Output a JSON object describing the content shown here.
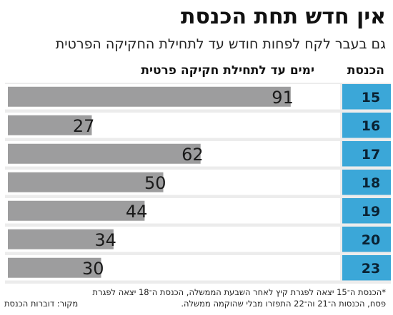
{
  "title": "אין חדש תחת הכנסת",
  "subtitle": "גם בעבר לקח לפחות חודש עד לתחילת החקיקה הפרטית",
  "colors": {
    "bar": "#9d9d9e",
    "label_cell": "#3ba7d8",
    "panel": "#ececec",
    "row_bg": "#ffffff"
  },
  "chart_data": {
    "type": "bar",
    "orientation": "horizontal",
    "column_headers": {
      "category": "הכנסת",
      "value": "ימים עד לתחילת חקיקה פרטית"
    },
    "categories": [
      "15",
      "16",
      "17",
      "18",
      "19",
      "20",
      "23"
    ],
    "values": [
      91,
      27,
      62,
      50,
      44,
      34,
      30
    ],
    "xlim": [
      0,
      100
    ],
    "grid": false
  },
  "footnote": {
    "line1": "*הכנסת ה־15 יצאה לפגרת קיץ לאחר השבעת הממשלה, הכנסת ה־18 יצאה לפגרת",
    "line2": "פסח, הכנסות ה־21 וה־22 התפזרו מבלי שהוקמה ממשלה.",
    "source": "מקור: דוברות הכנסת"
  }
}
